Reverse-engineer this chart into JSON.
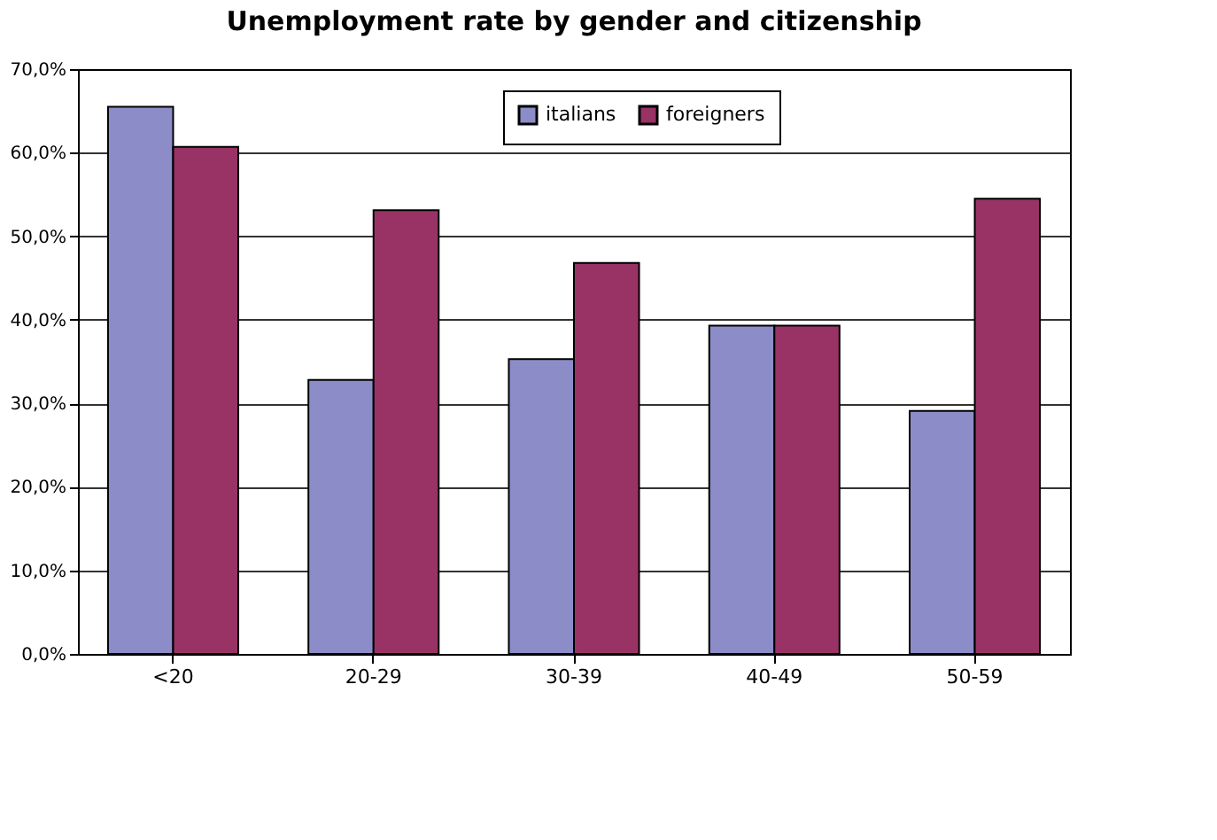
{
  "chart_data": {
    "type": "bar",
    "title": "Unemployment rate by gender and citizenship",
    "categories": [
      "<20",
      "20-29",
      "30-39",
      "40-49",
      "50-59"
    ],
    "series": [
      {
        "name": "italians",
        "color": "#8c8cc8",
        "values": [
          65.5,
          32.8,
          35.3,
          39.3,
          29.1
        ]
      },
      {
        "name": "foreigners",
        "color": "#993366",
        "values": [
          60.7,
          53.1,
          46.8,
          39.3,
          54.5
        ]
      }
    ],
    "ylim": [
      0,
      70
    ],
    "yticks": [
      {
        "value": 0,
        "label": "0,0%"
      },
      {
        "value": 10,
        "label": "10,0%"
      },
      {
        "value": 20,
        "label": "20,0%"
      },
      {
        "value": 30,
        "label": "30,0%"
      },
      {
        "value": 40,
        "label": "40,0%"
      },
      {
        "value": 50,
        "label": "50,0%"
      },
      {
        "value": 60,
        "label": "60,0%"
      },
      {
        "value": 70,
        "label": "70,0%"
      }
    ],
    "grid": "y",
    "legend": "top"
  }
}
